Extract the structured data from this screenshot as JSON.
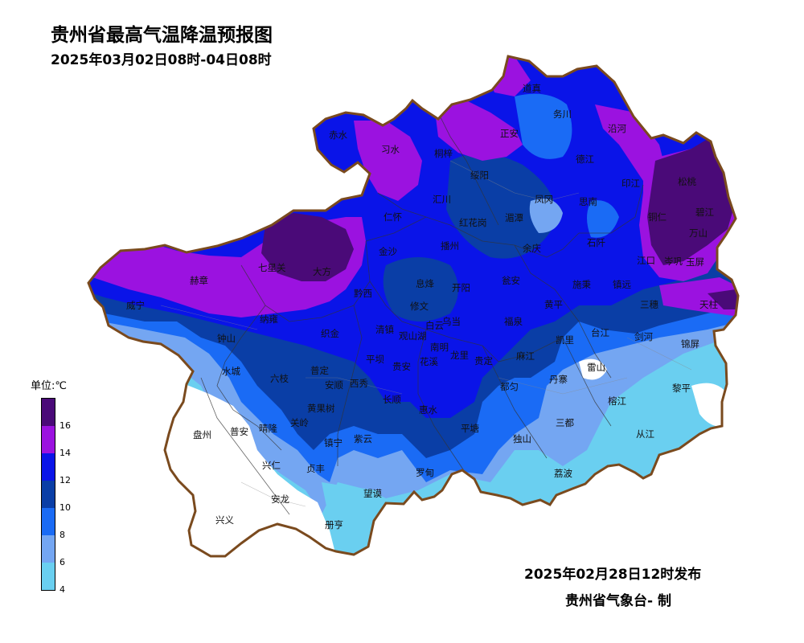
{
  "title": "贵州省最高气温降温预报图",
  "subtitle": "2025年03月02日08时-04日08时",
  "issue_time": "2025年02月28日12时发布",
  "issuer": "贵州省气象台- 制",
  "legend": {
    "unit": "单位:℃",
    "labels": [
      "16",
      "14",
      "12",
      "10",
      "8",
      "6",
      "4"
    ],
    "colors": {
      "gt16": "#4a0a78",
      "14_16": "#9b12e0",
      "12_14": "#0a14e8",
      "10_12": "#0a3ea6",
      "8_10": "#1a6bf5",
      "6_8": "#74a6f2",
      "4_6": "#6acff0",
      "lt4": "#ffffff"
    }
  },
  "counties": {
    "chishui": "赤水",
    "xishui": "习水",
    "tongzi": "桐梓",
    "zhengan": "正安",
    "daozhen": "道真",
    "wuchuan": "务川",
    "yanhe": "沿河",
    "dejiang": "德江",
    "suiyang": "绥阳",
    "fenggang": "凤冈",
    "yinjiang": "印江",
    "songtao": "松桃",
    "huichuan": "汇川",
    "meitan": "湄潭",
    "sinan": "思南",
    "tongren": "铜仁",
    "bijiang": "碧江",
    "wanshan": "万山",
    "renhuai": "仁怀",
    "honghuagang": "红花岗",
    "bozhou": "播州",
    "yuqing": "余庆",
    "shiqian": "石阡",
    "jiangkou": "江口",
    "qixingguan": "七星关",
    "dafang": "大方",
    "jinsha": "金沙",
    "hezhang": "赫章",
    "qianxi": "黔西",
    "xifeng": "息烽",
    "kaiyang": "开阳",
    "wengan": "瓮安",
    "shibing": "施秉",
    "zhenyuan": "镇远",
    "cengong": "岑巩",
    "yuping": "玉屏",
    "weining": "威宁",
    "nayong": "纳雍",
    "zhijin": "织金",
    "qingzhen": "清镇",
    "xiuwen": "修文",
    "baiyun": "白云",
    "wudang": "乌当",
    "huangping": "黄平",
    "sansui": "三穗",
    "tianzhu": "天柱",
    "zhongshan": "钟山",
    "guanshanhu": "观山湖",
    "nanming": "南明",
    "fuquan": "福泉",
    "kaili": "凯里",
    "taijiang": "台江",
    "jianhe": "剑河",
    "jinping": "锦屏",
    "pingba": "平坝",
    "huaxi": "花溪",
    "longli": "龙里",
    "guiding": "贵定",
    "majiang": "麻江",
    "leishan": "雷山",
    "shuicheng": "水城",
    "liuzhi": "六枝",
    "puding": "普定",
    "xixiu": "西秀",
    "anshun": "安顺",
    "guiyang": "贵安",
    "duyun": "都匀",
    "danzhai": "丹寨",
    "rongjiang": "榕江",
    "liping": "黎平",
    "huangguoshu": "黄果树",
    "changshun": "长顺",
    "huishui": "惠水",
    "panzhou": "盘州",
    "puan": "普安",
    "qinglong": "晴隆",
    "guanling": "关岭",
    "zhenning": "镇宁",
    "ziyun": "紫云",
    "pingtang": "平塘",
    "dushan": "独山",
    "sandu": "三都",
    "congjiang": "从江",
    "xingren": "兴仁",
    "zhenfeng": "贞丰",
    "luodian": "罗甸",
    "libo": "荔波",
    "anlong": "安龙",
    "wangmo": "望谟",
    "xingyi": "兴义",
    "ceheng": "册亨"
  }
}
